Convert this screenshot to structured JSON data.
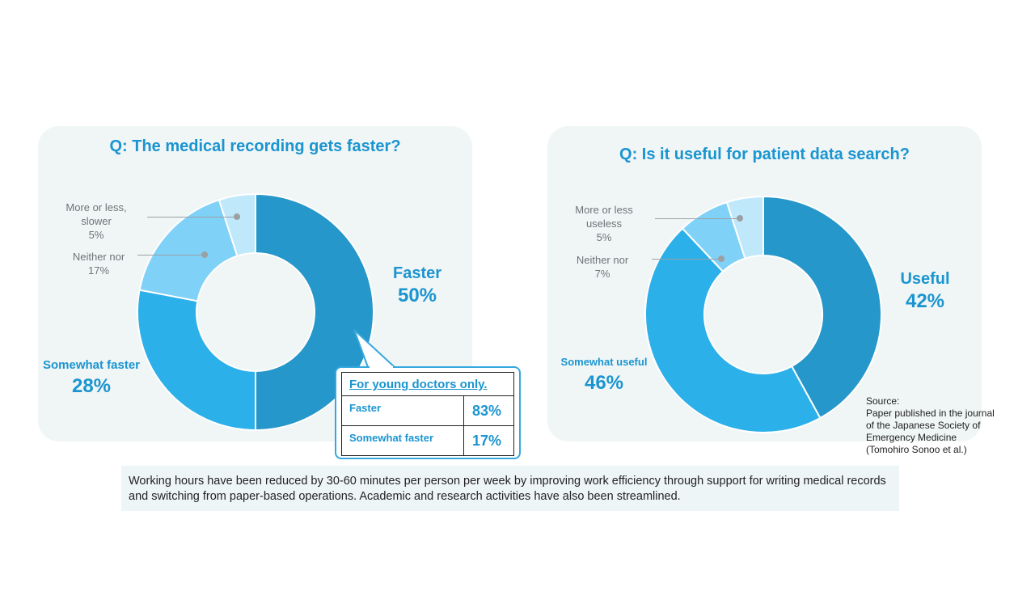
{
  "chart_data": [
    {
      "type": "pie",
      "subtype": "donut",
      "title": "Q: The medical recording gets faster?",
      "slices": [
        {
          "label": "Faster",
          "pct_label": "50%",
          "value": 50,
          "color": "#2697ca"
        },
        {
          "label": "Somewhat faster",
          "pct_label": "28%",
          "value": 28,
          "color": "#2cb0ea"
        },
        {
          "label": "Neither nor",
          "pct_label": "17%",
          "value": 17,
          "color": "#7fd1f7"
        },
        {
          "label": "More or less, slower",
          "label_lines": [
            "More or less,",
            "slower"
          ],
          "pct_label": "5%",
          "value": 5,
          "color": "#bfe8fb"
        }
      ],
      "inset_table": {
        "title": "For young doctors only.",
        "rows": [
          {
            "label": "Faster",
            "value": "83%"
          },
          {
            "label": "Somewhat faster",
            "value": "17%"
          }
        ]
      }
    },
    {
      "type": "pie",
      "subtype": "donut",
      "title": "Q: Is it useful for patient data search?",
      "slices": [
        {
          "label": "Useful",
          "pct_label": "42%",
          "value": 42,
          "color": "#2697ca"
        },
        {
          "label": "Somewhat useful",
          "pct_label": "46%",
          "value": 46,
          "color": "#2cb0ea"
        },
        {
          "label": "Neither nor",
          "pct_label": "7%",
          "value": 7,
          "color": "#7fd1f7"
        },
        {
          "label": "More or less useless",
          "label_lines": [
            "More or less",
            "useless"
          ],
          "pct_label": "5%",
          "value": 5,
          "color": "#bfe8fb"
        }
      ]
    }
  ],
  "source": {
    "heading": "Source:",
    "lines": [
      "Paper published in the journal",
      "of the Japanese Society of",
      "Emergency Medicine",
      "(Tomohiro Sonoo et al.)"
    ]
  },
  "caption": "Working hours have been reduced by 30-60 minutes per person per week by improving work efficiency through support for writing medical records and switching from paper-based operations. Academic and research activities have also been streamlined."
}
